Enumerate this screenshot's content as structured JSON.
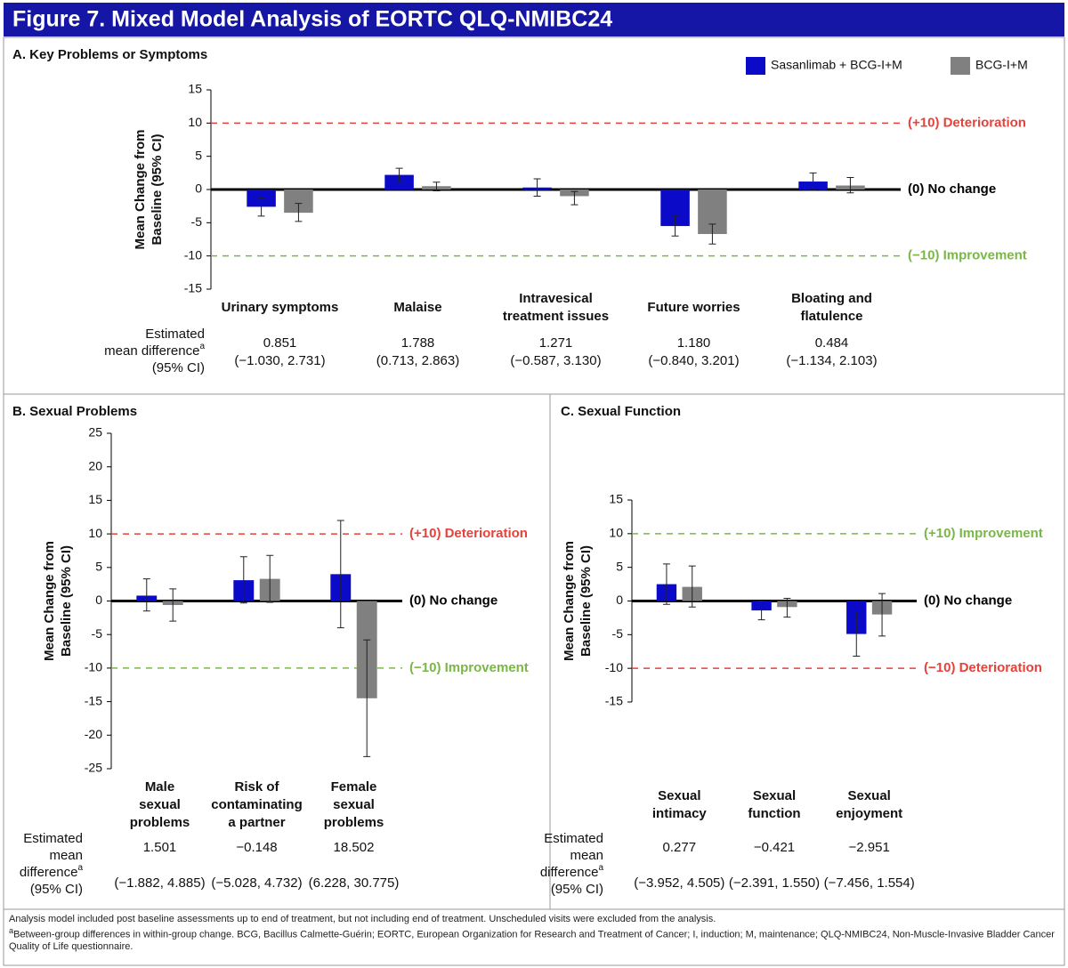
{
  "title": "Figure 7. Mixed Model Analysis of EORTC QLQ-NMIBC24",
  "chart_data": [
    {
      "type": "bar",
      "title": "A. Key Problems or Symptoms",
      "y_label": [
        "Mean Change from",
        "Baseline (95% CI)"
      ],
      "categories": [
        [
          "Urinary symptoms"
        ],
        [
          "Malaise"
        ],
        [
          "Intravesical",
          "treatment issues"
        ],
        [
          "Future worries"
        ],
        [
          "Bloating and",
          "flatulence"
        ]
      ],
      "series": [
        {
          "name": "Sasanlimab + BCG-I+M",
          "color": "#0a0ac8",
          "values": [
            -2.6,
            2.2,
            0.3,
            -5.5,
            1.2
          ],
          "ci_lower": [
            -4.0,
            1.2,
            -1.0,
            -7.0,
            0.0
          ],
          "ci_upper": [
            -1.3,
            3.2,
            1.6,
            -4.0,
            2.5
          ]
        },
        {
          "name": "BCG-I+M",
          "color": "#808080",
          "values": [
            -3.5,
            0.5,
            -1.0,
            -6.7,
            0.6
          ],
          "ci_lower": [
            -4.8,
            -0.2,
            -2.3,
            -8.2,
            -0.5
          ],
          "ci_upper": [
            -2.1,
            1.1,
            -0.3,
            -5.2,
            1.8
          ]
        }
      ],
      "legend": "top-right",
      "ylim": [
        -15,
        15
      ],
      "yticks": [
        -15,
        -10,
        -5,
        0,
        5,
        10,
        15
      ],
      "reference_lines": [
        {
          "value": 10,
          "label": "(+10) Deterioration",
          "color": "#e8413a",
          "dashed": true
        },
        {
          "value": 0,
          "label": "(0) No change",
          "color": "#000000",
          "dashed": false
        },
        {
          "value": -10,
          "label": "(−10) Improvement",
          "color": "#7ab648",
          "dashed": true
        }
      ],
      "difference_label": [
        "Estimated",
        "mean difference",
        "(95% CI)"
      ],
      "difference_label_sup": "a",
      "differences": [
        "0.851",
        "1.788",
        "1.271",
        "1.180",
        "0.484"
      ],
      "difference_ci": [
        "(−1.030, 2.731)",
        "(0.713, 2.863)",
        "(−0.587, 3.130)",
        "(−0.840, 3.201)",
        "(−1.134, 2.103)"
      ]
    },
    {
      "type": "bar",
      "title": "B. Sexual Problems",
      "y_label": [
        "Mean Change from",
        "Baseline (95% CI)"
      ],
      "categories": [
        [
          "Male",
          "sexual",
          "problems"
        ],
        [
          "Risk of",
          "contaminating",
          "a partner"
        ],
        [
          "Female",
          "sexual",
          "problems"
        ]
      ],
      "series": [
        {
          "name": "Sasanlimab + BCG-I+M",
          "color": "#0a0ac8",
          "values": [
            0.8,
            3.1,
            4.0
          ],
          "ci_lower": [
            -1.5,
            -0.3,
            -4.0
          ],
          "ci_upper": [
            3.3,
            6.6,
            12.0
          ]
        },
        {
          "name": "BCG-I+M",
          "color": "#808080",
          "values": [
            -0.6,
            3.3,
            -14.5
          ],
          "ci_lower": [
            -3.0,
            -0.2,
            -23.2
          ],
          "ci_upper": [
            1.8,
            6.8,
            -5.8
          ]
        }
      ],
      "ylim": [
        -25,
        25
      ],
      "yticks": [
        -25,
        -20,
        -15,
        -10,
        -5,
        0,
        5,
        10,
        15,
        20,
        25
      ],
      "reference_lines": [
        {
          "value": 10,
          "label": "(+10) Deterioration",
          "color": "#e8413a",
          "dashed": true
        },
        {
          "value": 0,
          "label": "(0) No change",
          "color": "#000000",
          "dashed": false
        },
        {
          "value": -10,
          "label": "(−10) Improvement",
          "color": "#7ab648",
          "dashed": true
        }
      ],
      "difference_label": [
        "Estimated",
        "mean",
        "difference",
        "(95% CI)"
      ],
      "difference_label_sup": "a",
      "differences": [
        "1.501",
        "−0.148",
        "18.502"
      ],
      "difference_ci": [
        "(−1.882, 4.885)",
        "(−5.028, 4.732)",
        "(6.228, 30.775)"
      ]
    },
    {
      "type": "bar",
      "title": "C. Sexual Function",
      "y_label": [
        "Mean Change from",
        "Baseline (95% CI)"
      ],
      "categories": [
        [
          "Sexual",
          "intimacy"
        ],
        [
          "Sexual",
          "function"
        ],
        [
          "Sexual",
          "enjoyment"
        ]
      ],
      "series": [
        {
          "name": "Sasanlimab + BCG-I+M",
          "color": "#0a0ac8",
          "values": [
            2.5,
            -1.4,
            -4.9
          ],
          "ci_lower": [
            -0.5,
            -2.8,
            -8.2
          ],
          "ci_upper": [
            5.5,
            0.0,
            -1.6
          ]
        },
        {
          "name": "BCG-I+M",
          "color": "#808080",
          "values": [
            2.1,
            -0.9,
            -2.0
          ],
          "ci_lower": [
            -0.9,
            -2.4,
            -5.2
          ],
          "ci_upper": [
            5.2,
            0.4,
            1.1
          ]
        }
      ],
      "ylim": [
        -15,
        15
      ],
      "yticks": [
        -15,
        -10,
        -5,
        0,
        5,
        10,
        15
      ],
      "reference_lines": [
        {
          "value": 10,
          "label": "(+10) Improvement",
          "color": "#7ab648",
          "dashed": true
        },
        {
          "value": 0,
          "label": "(0) No change",
          "color": "#000000",
          "dashed": false
        },
        {
          "value": -10,
          "label": "(−10) Deterioration",
          "color": "#e8413a",
          "dashed": true
        }
      ],
      "difference_label": [
        "Estimated",
        "mean",
        "difference",
        "(95% CI)"
      ],
      "difference_label_sup": "a",
      "differences": [
        "0.277",
        "−0.421",
        "−2.951"
      ],
      "difference_ci": [
        "(−3.952, 4.505)",
        "(−2.391, 1.550)",
        "(−7.456, 1.554)"
      ]
    }
  ],
  "footnotes": [
    "Analysis model included post baseline assessments up to end of treatment, but not including end of treatment. Unscheduled visits were excluded from the analysis.",
    "Between-group differences in within-group change. BCG, Bacillus Calmette-Guérin; EORTC, European Organization for Research and Treatment of Cancer; I, induction; M, maintenance; QLQ-NMIBC24, Non-Muscle-Invasive Bladder Cancer Quality of Life questionnaire."
  ],
  "footnote_marker": "a"
}
